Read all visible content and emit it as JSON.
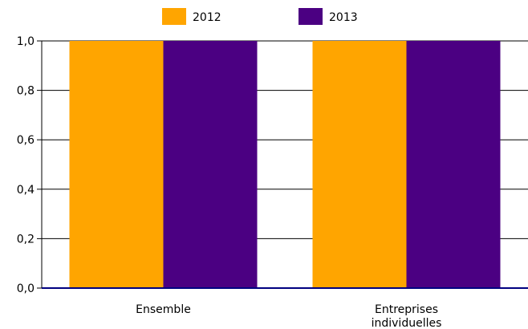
{
  "chart_data": {
    "type": "bar",
    "categories": [
      [
        "Ensemble"
      ],
      [
        "Entreprises",
        "individuelles"
      ]
    ],
    "series": [
      {
        "name": "2012",
        "values": [
          1.0,
          1.0
        ],
        "color": "#FFA500"
      },
      {
        "name": "2013",
        "values": [
          1.0,
          1.0
        ],
        "color": "#4B0082"
      }
    ],
    "ylim": [
      0,
      1.0
    ],
    "yticks": [
      "0,0",
      "0,2",
      "0,4",
      "0,6",
      "0,8",
      "1,0"
    ],
    "grid": true,
    "legend_position": "top",
    "title": "",
    "xlabel": "",
    "ylabel": ""
  }
}
